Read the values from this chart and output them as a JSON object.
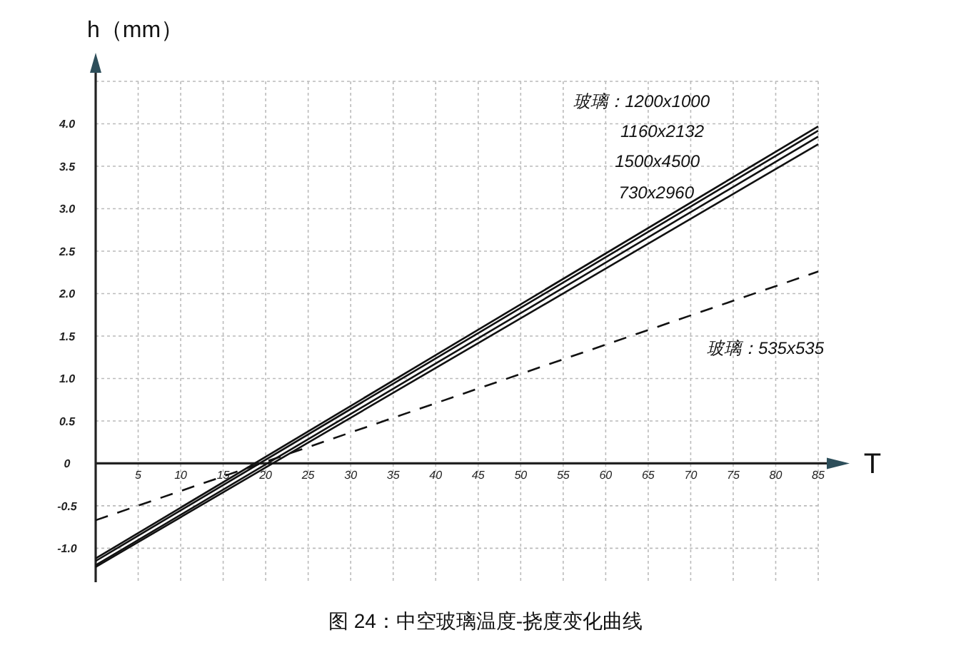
{
  "chart_data": {
    "type": "line",
    "xlabel": "T",
    "ylabel": "h（mm）",
    "x": [
      0,
      85
    ],
    "series": [
      {
        "color": "#111111",
        "values": [
          -1.12,
          3.97
        ],
        "line_style": "solid"
      },
      {
        "color": "#111111",
        "values": [
          -1.15,
          3.92
        ],
        "line_style": "solid"
      },
      {
        "color": "#111111",
        "values": [
          -1.2,
          3.85
        ],
        "line_style": "solid"
      },
      {
        "color": "#111111",
        "values": [
          -1.22,
          3.76
        ],
        "line_style": "solid"
      },
      {
        "color": "#111111",
        "values": [
          -0.67,
          2.26
        ],
        "line_style": "dashed"
      }
    ],
    "xlim": [
      0,
      85
    ],
    "ylim": [
      -1.4,
      4.5
    ],
    "xticks": [
      5,
      10,
      15,
      20,
      25,
      30,
      35,
      40,
      45,
      50,
      55,
      60,
      65,
      70,
      75,
      80,
      85
    ],
    "yticks": [
      {
        "value": -1,
        "label": "-1.0"
      },
      {
        "value": -0.5,
        "label": "-0.5"
      },
      0,
      0.5,
      {
        "value": 1,
        "label": "1.0"
      },
      1.5,
      {
        "value": 2,
        "label": "2.0"
      },
      2.5,
      {
        "value": 3,
        "label": "3.0"
      },
      3.5,
      {
        "value": 4,
        "label": "4.0"
      }
    ],
    "grid": true,
    "annotations": [
      "玻璃：1200x1000",
      "1160x2132",
      "1500x4500",
      "730x2960",
      "玻璃：535x535",
      "图 24：中空玻璃温度-挠度变化曲线"
    ]
  }
}
